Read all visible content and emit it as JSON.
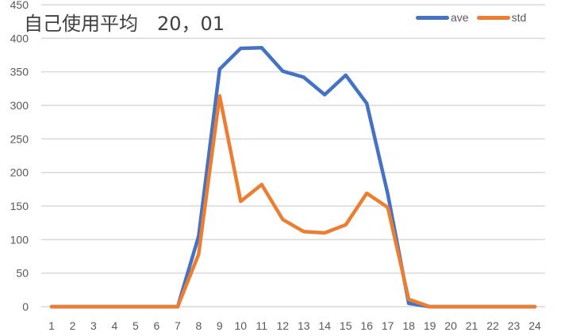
{
  "chart_data": {
    "type": "line",
    "title": "自己使用平均　20，01",
    "xlabel": "",
    "ylabel": "",
    "x": [
      1,
      2,
      3,
      4,
      5,
      6,
      7,
      8,
      9,
      10,
      11,
      12,
      13,
      14,
      15,
      16,
      17,
      18,
      19,
      20,
      21,
      22,
      23,
      24
    ],
    "series": [
      {
        "name": "ave",
        "color": "#4472C4",
        "values": [
          0,
          0,
          0,
          0,
          0,
          0,
          0,
          105,
          354,
          385,
          386,
          351,
          342,
          316,
          345,
          303,
          168,
          5,
          0,
          0,
          0,
          0,
          0,
          0
        ]
      },
      {
        "name": "std",
        "color": "#ED7D31",
        "values": [
          0,
          0,
          0,
          0,
          0,
          0,
          0,
          78,
          314,
          157,
          182,
          130,
          112,
          110,
          122,
          169,
          148,
          11,
          0,
          0,
          0,
          0,
          0,
          0
        ]
      }
    ],
    "ylim": [
      0,
      450
    ],
    "yticks": [
      0,
      50,
      100,
      150,
      200,
      250,
      300,
      350,
      400,
      450
    ],
    "grid": true,
    "legend_position": "top-right"
  },
  "title": "自己使用平均　20，01",
  "legend": [
    {
      "label": "ave",
      "color": "#4472C4"
    },
    {
      "label": "std",
      "color": "#ED7D31"
    }
  ]
}
